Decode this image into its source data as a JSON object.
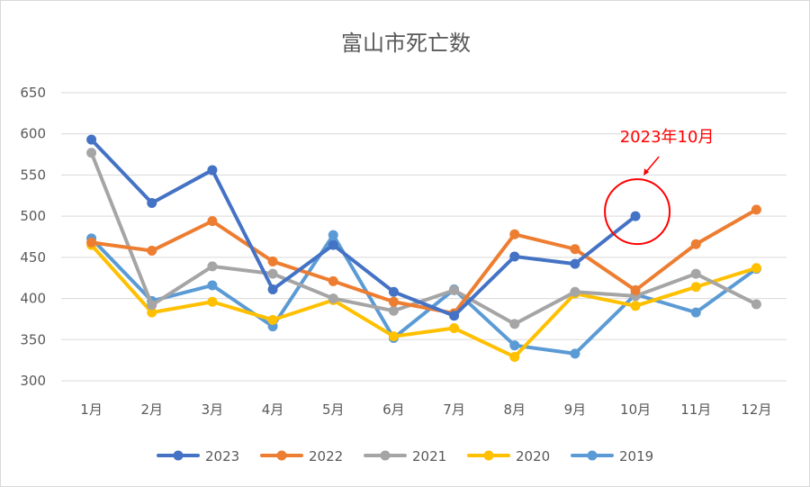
{
  "chart_data": {
    "type": "line",
    "title": "富山市死亡数",
    "categories": [
      "1月",
      "2月",
      "3月",
      "4月",
      "5月",
      "6月",
      "7月",
      "8月",
      "9月",
      "10月",
      "11月",
      "12月"
    ],
    "ylim": [
      300,
      650
    ],
    "yticks": [
      300,
      350,
      400,
      450,
      500,
      550,
      600,
      650
    ],
    "grid": true,
    "legend_position": "bottom",
    "series": [
      {
        "name": "2023",
        "color": "#4472C4",
        "values": [
          593,
          516,
          556,
          411,
          465,
          408,
          379,
          451,
          442,
          500,
          null,
          null
        ]
      },
      {
        "name": "2022",
        "color": "#ED7D31",
        "values": [
          468,
          458,
          494,
          445,
          421,
          396,
          382,
          478,
          460,
          410,
          466,
          508
        ]
      },
      {
        "name": "2021",
        "color": "#A5A5A5",
        "values": [
          577,
          392,
          439,
          430,
          400,
          385,
          410,
          369,
          408,
          403,
          430,
          393
        ]
      },
      {
        "name": "2020",
        "color": "#FFC000",
        "values": [
          465,
          383,
          396,
          374,
          398,
          354,
          364,
          329,
          406,
          391,
          414,
          437
        ]
      },
      {
        "name": "2019",
        "color": "#5B9BD5",
        "values": [
          473,
          397,
          416,
          366,
          477,
          352,
          411,
          343,
          333,
          405,
          383,
          436
        ]
      }
    ],
    "annotation": {
      "text": "2023年10月",
      "color": "#FF0000",
      "series": "2023",
      "category": "10月"
    }
  }
}
